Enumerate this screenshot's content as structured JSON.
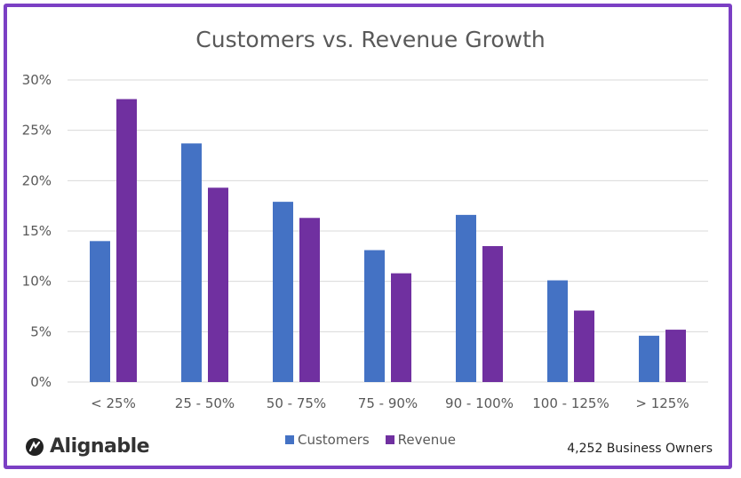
{
  "chart_data": {
    "type": "bar",
    "title": "Customers vs. Revenue Growth",
    "categories": [
      "< 25%",
      "25 - 50%",
      "50 - 75%",
      "75 - 90%",
      "90 - 100%",
      "100 - 125%",
      "> 125%"
    ],
    "series": [
      {
        "name": "Customers",
        "values": [
          14.0,
          23.7,
          17.9,
          13.1,
          16.6,
          10.1,
          4.6
        ],
        "color": "#4472c4"
      },
      {
        "name": "Revenue",
        "values": [
          28.1,
          19.3,
          16.3,
          10.8,
          13.5,
          7.1,
          5.2
        ],
        "color": "#7030a0"
      }
    ],
    "y_ticks": [
      "0%",
      "5%",
      "10%",
      "15%",
      "20%",
      "25%",
      "30%"
    ],
    "ylim": [
      0,
      30
    ],
    "grid": true,
    "legend": "bottom"
  },
  "brand": {
    "name": "Alignable",
    "color": "#7b3fc4"
  },
  "footnote": "4,252 Business Owners"
}
